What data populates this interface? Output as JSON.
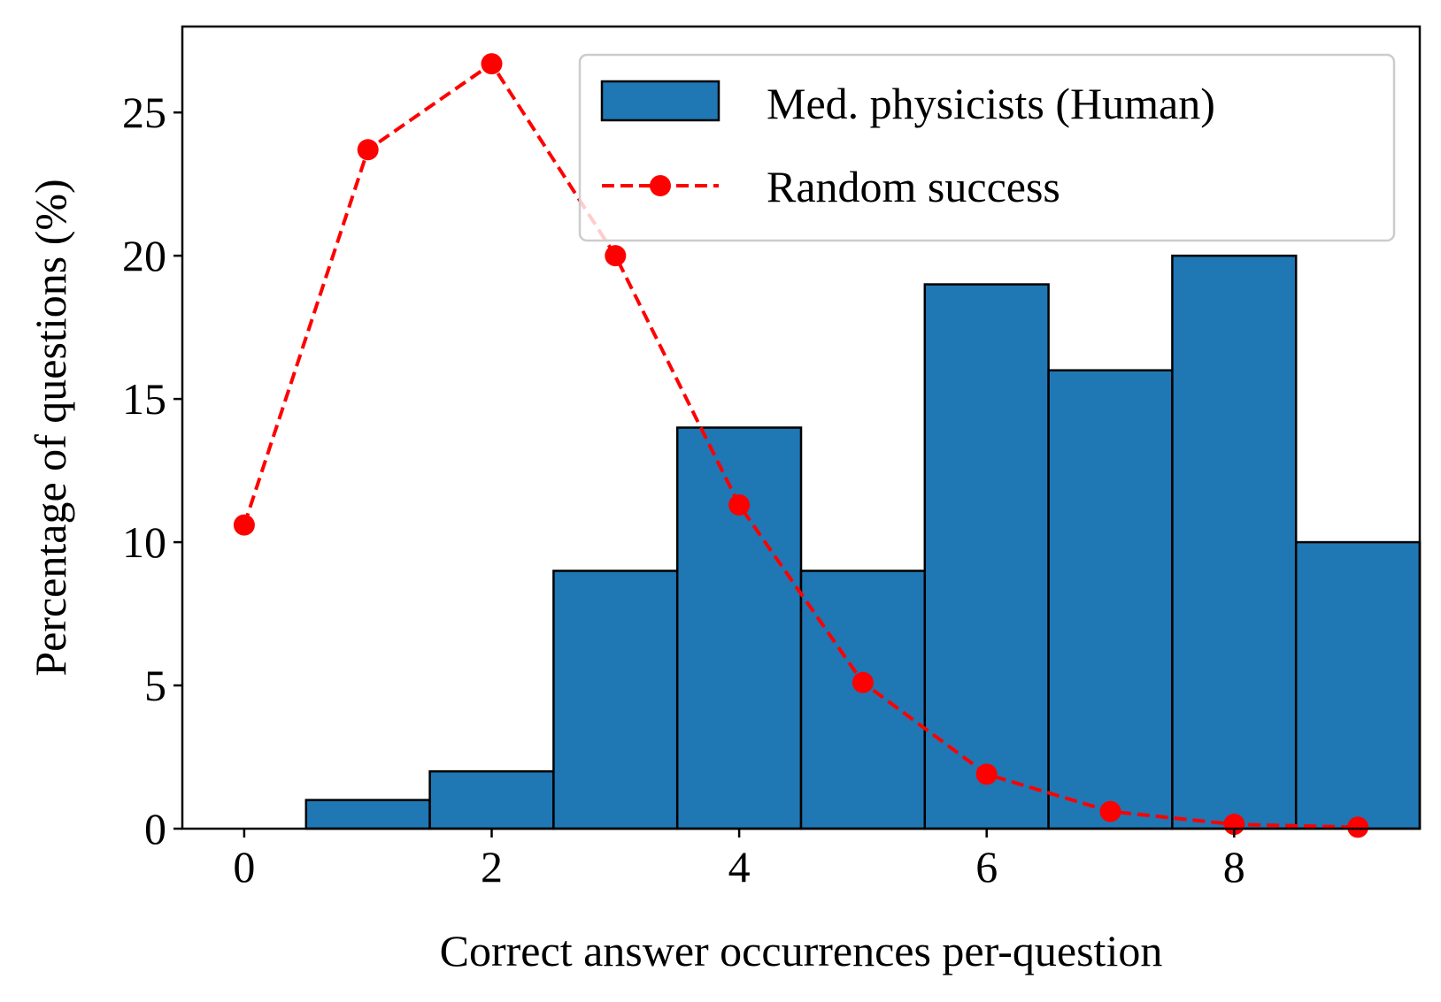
{
  "chart_data": {
    "type": "bar",
    "xlabel": "Correct answer occurrences per-question",
    "ylabel": "Percentage of questions (%)",
    "xlim": [
      -0.5,
      9.5
    ],
    "ylim": [
      0,
      28
    ],
    "x_ticks": [
      0,
      2,
      4,
      6,
      8
    ],
    "y_ticks": [
      0,
      5,
      10,
      15,
      20,
      25
    ],
    "grid": false,
    "legend_position": "top-right",
    "x": [
      0,
      1,
      2,
      3,
      4,
      5,
      6,
      7,
      8,
      9
    ],
    "series": [
      {
        "name": "Med. physicists (Human)",
        "type": "bar",
        "color": "#1f77b4",
        "values": [
          0,
          1,
          2,
          9,
          14,
          9,
          19,
          16,
          20,
          10
        ]
      },
      {
        "name": "Random success",
        "type": "line",
        "style": "dashed",
        "marker": "circle",
        "color": "#ff0000",
        "values": [
          10.6,
          23.7,
          26.7,
          20.0,
          11.3,
          5.1,
          1.9,
          0.6,
          0.15,
          0.05
        ]
      }
    ]
  }
}
